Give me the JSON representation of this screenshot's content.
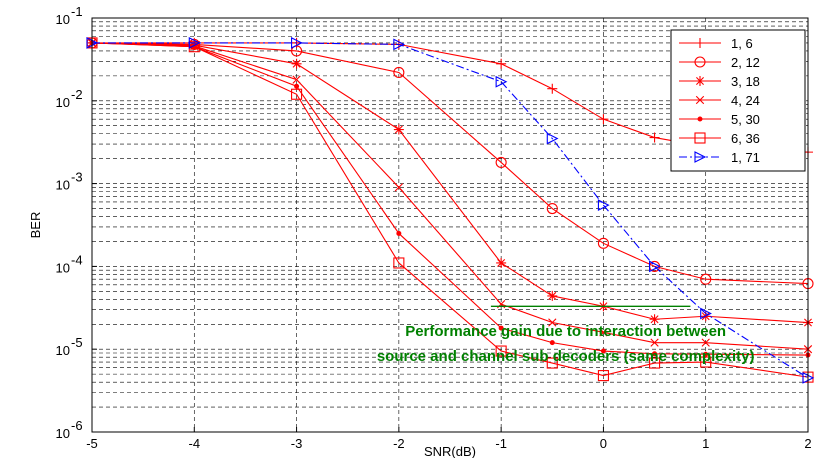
{
  "chart_data": {
    "type": "line",
    "title": "",
    "xlabel": "SNR(dB)",
    "ylabel": "BER",
    "xlim": [
      -5,
      2
    ],
    "ylim": [
      1e-06,
      0.1
    ],
    "yscale": "log",
    "grid": true,
    "legend_position": "top-right",
    "x_ticks": [
      -5,
      -4,
      -3,
      -2,
      -1,
      0,
      1,
      2
    ],
    "x_tick_labels": [
      "-5",
      "-4",
      "-3",
      "-2",
      "-1",
      "0",
      "1",
      "2"
    ],
    "y_ticks": [
      {
        "value": 0.1,
        "base": "10",
        "exp": "-1"
      },
      {
        "value": 0.01,
        "base": "10",
        "exp": "-2"
      },
      {
        "value": 0.001,
        "base": "10",
        "exp": "-3"
      },
      {
        "value": 0.0001,
        "base": "10",
        "exp": "-4"
      },
      {
        "value": 1e-05,
        "base": "10",
        "exp": "-5"
      },
      {
        "value": 1e-06,
        "base": "10",
        "exp": "-6"
      }
    ],
    "series": [
      {
        "name": "1, 6",
        "color": "#ff0000",
        "marker": "plus",
        "dash": "solid",
        "x": [
          -5,
          -4,
          -3,
          -2,
          -1,
          -0.5,
          0,
          0.5,
          1,
          2
        ],
        "y": [
          0.05,
          0.05,
          0.05,
          0.048,
          0.028,
          0.014,
          0.006,
          0.0036,
          0.0028,
          0.0024
        ]
      },
      {
        "name": "2, 12",
        "color": "#ff0000",
        "marker": "circle",
        "dash": "solid",
        "x": [
          -5,
          -4,
          -3,
          -2,
          -1,
          -0.5,
          0,
          0.5,
          1,
          2
        ],
        "y": [
          0.05,
          0.048,
          0.04,
          0.022,
          0.0018,
          0.0005,
          0.00019,
          0.0001,
          7e-05,
          6.2e-05
        ]
      },
      {
        "name": "3, 18",
        "color": "#ff0000",
        "marker": "star",
        "dash": "solid",
        "x": [
          -5,
          -4,
          -3,
          -2,
          -1,
          -0.5,
          0,
          0.5,
          1,
          2
        ],
        "y": [
          0.05,
          0.047,
          0.028,
          0.0045,
          0.00011,
          4.4e-05,
          3.3e-05,
          2.3e-05,
          2.5e-05,
          2.1e-05
        ]
      },
      {
        "name": "4, 24",
        "color": "#ff0000",
        "marker": "x",
        "dash": "solid",
        "x": [
          -5,
          -4,
          -3,
          -2,
          -1,
          -0.5,
          0,
          0.5,
          1,
          2
        ],
        "y": [
          0.05,
          0.046,
          0.018,
          0.0009,
          3.5e-05,
          2.1e-05,
          1.6e-05,
          1.2e-05,
          1.2e-05,
          1e-05
        ]
      },
      {
        "name": "5, 30",
        "color": "#ff0000",
        "marker": "dot",
        "dash": "solid",
        "x": [
          -5,
          -4,
          -3,
          -2,
          -1,
          -0.5,
          0,
          0.5,
          1,
          2
        ],
        "y": [
          0.05,
          0.045,
          0.015,
          0.00025,
          1.8e-05,
          1.2e-05,
          9.5e-06,
          8.8e-06,
          8.7e-06,
          8.5e-06
        ]
      },
      {
        "name": "6, 36",
        "color": "#ff0000",
        "marker": "square",
        "dash": "solid",
        "x": [
          -5,
          -4,
          -3,
          -2,
          -1,
          -0.5,
          0,
          0.5,
          1,
          2
        ],
        "y": [
          0.05,
          0.045,
          0.012,
          0.00011,
          9.5e-06,
          6.8e-06,
          4.8e-06,
          6.8e-06,
          7e-06,
          4.6e-06
        ]
      },
      {
        "name": "1, 71",
        "color": "#0000ff",
        "marker": "triangle-right",
        "dash": "dashdot",
        "x": [
          -5,
          -4,
          -3,
          -2,
          -1,
          -0.5,
          0,
          0.5,
          1,
          2
        ],
        "y": [
          0.05,
          0.05,
          0.05,
          0.048,
          0.017,
          0.0035,
          0.00055,
          0.0001,
          2.7e-05,
          4.5e-06
        ]
      }
    ],
    "annotation": {
      "lines": [
        "Performance gain due to interaction between",
        "source and channel sub decoders (same complexity)"
      ],
      "color": "#008000",
      "line_x": [
        -1.1,
        0.85
      ],
      "line_y": 3.3e-05
    }
  }
}
